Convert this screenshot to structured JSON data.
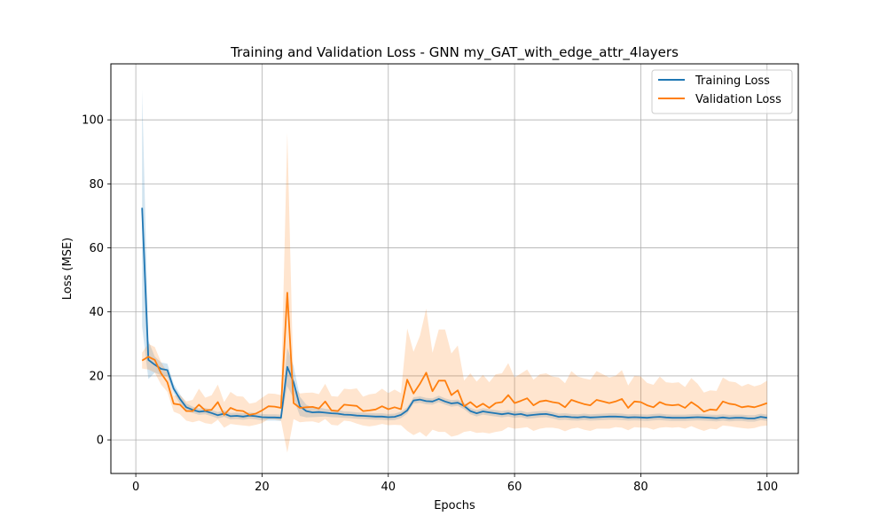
{
  "chart_data": {
    "type": "line",
    "title": "Training and Validation Loss - GNN my_GAT_with_edge_attr_4layers",
    "xlabel": "Epochs",
    "ylabel": "Loss (MSE)",
    "xlim": [
      -3.95,
      104.95
    ],
    "ylim": [
      -10.5,
      117.5
    ],
    "xticks": [
      0,
      20,
      40,
      60,
      80,
      100
    ],
    "yticks": [
      0,
      20,
      40,
      60,
      80,
      100
    ],
    "grid": true,
    "legend_position": "top-right",
    "x": [
      1,
      2,
      3,
      4,
      5,
      6,
      7,
      8,
      9,
      10,
      11,
      12,
      13,
      14,
      15,
      16,
      17,
      18,
      19,
      20,
      21,
      22,
      23,
      24,
      25,
      26,
      27,
      28,
      29,
      30,
      31,
      32,
      33,
      34,
      35,
      36,
      37,
      38,
      39,
      40,
      41,
      42,
      43,
      44,
      45,
      46,
      47,
      48,
      49,
      50,
      51,
      52,
      53,
      54,
      55,
      56,
      57,
      58,
      59,
      60,
      61,
      62,
      63,
      64,
      65,
      66,
      67,
      68,
      69,
      70,
      71,
      72,
      73,
      74,
      75,
      76,
      77,
      78,
      79,
      80,
      81,
      82,
      83,
      84,
      85,
      86,
      87,
      88,
      89,
      90,
      91,
      92,
      93,
      94,
      95,
      96,
      97,
      98,
      99,
      100
    ],
    "series": [
      {
        "name": "Training Loss",
        "color": "#1f77b4",
        "values": [
          72.5,
          25.0,
          23.5,
          22.2,
          21.8,
          16.0,
          12.8,
          10.2,
          9.4,
          8.8,
          9.0,
          8.4,
          7.7,
          8.2,
          7.4,
          7.5,
          7.3,
          7.6,
          7.4,
          7.1,
          7.0,
          7.0,
          6.9,
          22.8,
          18.0,
          10.5,
          9.0,
          8.6,
          8.7,
          8.5,
          8.3,
          8.2,
          7.9,
          7.8,
          7.6,
          7.5,
          7.4,
          7.3,
          7.3,
          7.1,
          7.2,
          7.8,
          9.2,
          12.3,
          12.6,
          12.1,
          12.0,
          12.8,
          12.0,
          11.4,
          11.6,
          10.6,
          9.0,
          8.3,
          8.9,
          8.6,
          8.3,
          8.0,
          8.3,
          7.9,
          8.1,
          7.6,
          7.8,
          8.0,
          8.1,
          7.7,
          7.2,
          7.3,
          7.1,
          7.0,
          7.2,
          7.0,
          7.1,
          7.2,
          7.3,
          7.3,
          7.2,
          7.0,
          7.1,
          7.0,
          6.9,
          7.1,
          7.2,
          7.0,
          6.9,
          6.9,
          6.9,
          7.0,
          7.1,
          7.0,
          6.9,
          6.8,
          7.0,
          6.8,
          6.9,
          6.9,
          6.7,
          6.7,
          7.2,
          6.9
        ],
        "band_halfwidth": [
          37,
          6,
          2.5,
          2,
          2,
          1.5,
          1.5,
          1.2,
          1,
          1,
          1,
          1,
          1,
          1,
          1,
          1,
          1,
          1,
          1,
          1,
          1,
          1,
          1,
          6,
          5,
          3,
          2,
          1.5,
          1.5,
          1.2,
          1.2,
          1.2,
          1,
          1,
          1,
          1,
          1,
          1,
          1,
          1,
          1,
          1,
          1,
          1,
          1,
          1,
          1,
          1,
          1,
          1,
          1,
          1,
          1,
          1,
          1,
          1,
          1,
          1,
          1,
          1,
          1,
          1,
          1,
          1,
          1,
          1,
          1,
          1,
          1,
          1,
          1,
          1,
          1,
          1,
          1,
          1,
          1,
          1,
          1,
          1,
          1,
          1,
          1,
          1,
          1,
          1,
          1,
          1,
          1,
          1,
          1,
          1,
          1,
          1,
          1,
          1,
          1,
          1,
          1,
          1
        ]
      },
      {
        "name": "Validation Loss",
        "color": "#ff7f0e",
        "values": [
          24.8,
          26.0,
          25.0,
          20.8,
          18.0,
          11.3,
          11.0,
          9.0,
          9.0,
          11.0,
          9.2,
          9.4,
          11.8,
          7.8,
          10.0,
          9.2,
          9.0,
          7.8,
          8.2,
          9.2,
          10.5,
          10.4,
          10.0,
          46.0,
          11.5,
          10.0,
          10.2,
          10.3,
          9.8,
          12.0,
          9.2,
          9.0,
          11.0,
          10.8,
          10.6,
          9.0,
          9.2,
          9.5,
          10.5,
          9.6,
          10.2,
          9.6,
          18.8,
          14.5,
          17.5,
          21.0,
          15.2,
          18.5,
          18.5,
          14.0,
          15.5,
          10.5,
          11.8,
          10.2,
          11.3,
          10.0,
          11.5,
          11.8,
          14.0,
          11.5,
          12.2,
          13.0,
          10.8,
          12.0,
          12.3,
          11.8,
          11.5,
          10.2,
          12.5,
          11.8,
          11.2,
          10.8,
          12.5,
          12.0,
          11.5,
          12.0,
          12.8,
          10.0,
          12.0,
          11.8,
          10.8,
          10.2,
          11.8,
          11.0,
          10.8,
          11.0,
          10.0,
          11.8,
          10.5,
          8.8,
          9.5,
          9.3,
          12.0,
          11.3,
          11.0,
          10.2,
          10.5,
          10.2,
          10.8,
          11.5
        ],
        "band_halfwidth": [
          2.5,
          4,
          4,
          3.5,
          3,
          2.5,
          3,
          3,
          3.5,
          5,
          4,
          4.5,
          5.5,
          4,
          5,
          4.5,
          4.5,
          3.5,
          3.5,
          4,
          4,
          4,
          4,
          50,
          5,
          4.5,
          4.5,
          4.5,
          4.5,
          5.5,
          4.5,
          4.5,
          5,
          5,
          5.5,
          4.5,
          5,
          5,
          5.5,
          5,
          5.5,
          5,
          16,
          13,
          15,
          20,
          12,
          16,
          16,
          13,
          14,
          8,
          9,
          8,
          9,
          8,
          9,
          9,
          10,
          8,
          8.5,
          9,
          8,
          8.5,
          8.5,
          8,
          8,
          7.5,
          9,
          8,
          8,
          8,
          9,
          8.5,
          8,
          8,
          9,
          7,
          8,
          8,
          7,
          7,
          8,
          7,
          7,
          7,
          6.5,
          7.5,
          7,
          6,
          6,
          6,
          7.5,
          7,
          7,
          6.5,
          7,
          6.5,
          6.5,
          7
        ]
      }
    ]
  }
}
